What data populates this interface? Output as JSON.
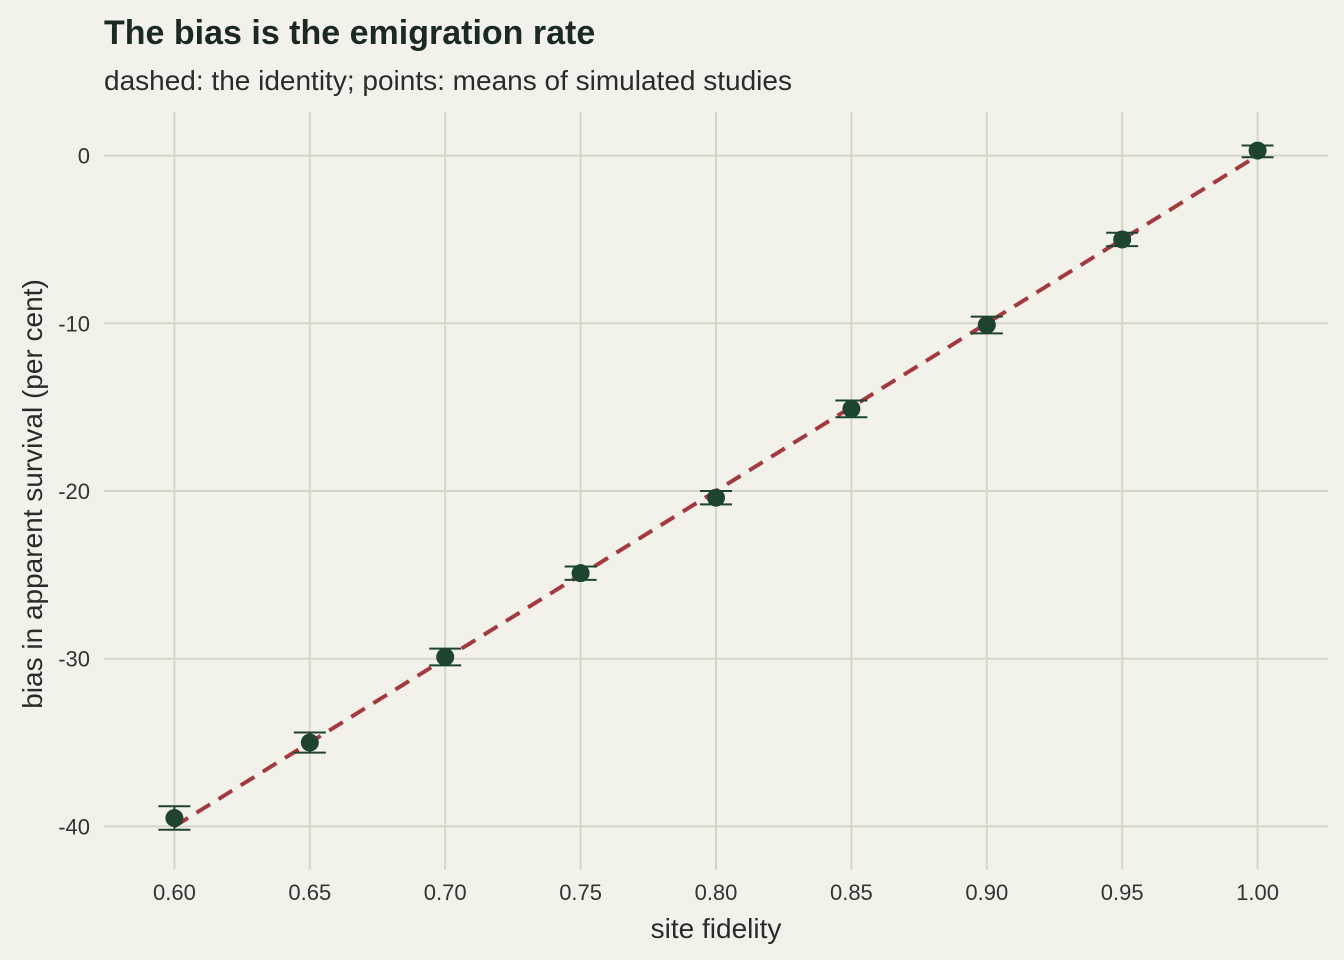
{
  "chart_data": {
    "type": "scatter",
    "title": "The bias is the emigration rate",
    "subtitle": "dashed: the identity; points: means of simulated studies",
    "xlabel": "site fidelity",
    "ylabel": "bias in apparent survival (per cent)",
    "xlim": [
      0.574,
      1.026
    ],
    "ylim": [
      -42.6,
      2.6
    ],
    "x_ticks": [
      0.6,
      0.65,
      0.7,
      0.75,
      0.8,
      0.85,
      0.9,
      0.95,
      1.0
    ],
    "x_tick_labels": [
      "0.60",
      "0.65",
      "0.70",
      "0.75",
      "0.80",
      "0.85",
      "0.90",
      "0.95",
      "1.00"
    ],
    "y_ticks": [
      0,
      -10,
      -20,
      -30,
      -40
    ],
    "y_tick_labels": [
      "0",
      "-10",
      "-20",
      "-30",
      "-40"
    ],
    "grid": true,
    "legend": "none",
    "series": [
      {
        "type": "line",
        "style": "dashed",
        "color": "#a33b3e",
        "x": [
          0.6,
          1.0
        ],
        "y": [
          -40,
          0
        ]
      },
      {
        "type": "scatter",
        "color": "#1e4430",
        "x": [
          0.6,
          0.65,
          0.7,
          0.75,
          0.8,
          0.85,
          0.9,
          0.95,
          1.0
        ],
        "y": [
          -39.5,
          -35.0,
          -29.9,
          -24.9,
          -20.4,
          -15.1,
          -10.1,
          -5.0,
          0.3
        ],
        "error_low": [
          -40.2,
          -35.6,
          -30.4,
          -25.3,
          -20.8,
          -15.6,
          -10.6,
          -5.4,
          -0.1
        ],
        "error_high": [
          -38.8,
          -34.4,
          -29.4,
          -24.5,
          -20.0,
          -14.6,
          -9.6,
          -4.6,
          0.6
        ]
      }
    ]
  }
}
